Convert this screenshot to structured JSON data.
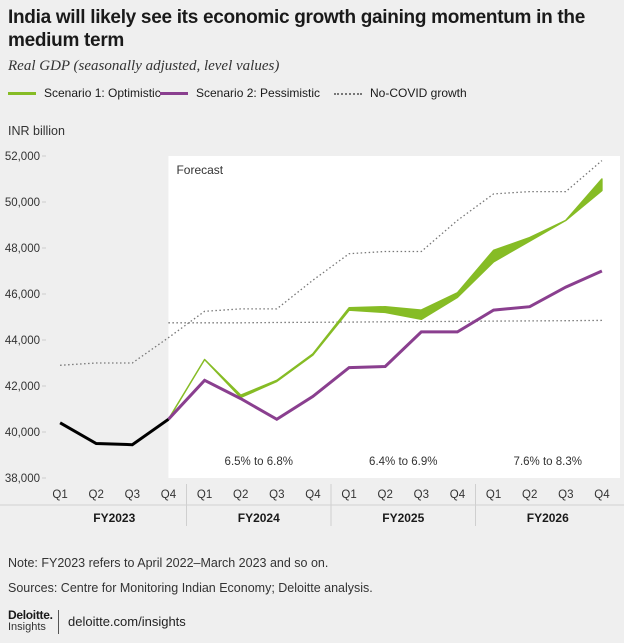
{
  "title": "India will likely see its economic growth gaining momentum in the medium term",
  "subtitle": "Real GDP (seasonally adjusted, level values)",
  "legend": [
    {
      "label": "Scenario 1: Optimistic",
      "color": "#86bc25",
      "style": "solid"
    },
    {
      "label": "Scenario 2: Pessimistic",
      "color": "#8a3f8f",
      "style": "solid"
    },
    {
      "label": "No-COVID growth",
      "color": "#777777",
      "style": "dotted"
    }
  ],
  "y_axis_label": "INR billion",
  "forecast_label": "Forecast",
  "notes": {
    "note": "Note: FY2023 refers to April 2022–March 2023 and so on.",
    "sources": "Sources: Centre for Monitoring Indian Economy; Deloitte analysis."
  },
  "brand": {
    "name": "Deloitte.",
    "sub": "Insights",
    "url": "deloitte.com/insights"
  },
  "colors": {
    "optimistic": "#86bc25",
    "pessimistic": "#8a3f8f",
    "actual": "#000000",
    "nocovid": "#777777",
    "background": "#efefef",
    "forecast_panel": "#ffffff"
  },
  "chart_data": {
    "type": "line",
    "categories": [
      "Q1",
      "Q2",
      "Q3",
      "Q4",
      "Q1",
      "Q2",
      "Q3",
      "Q4",
      "Q1",
      "Q2",
      "Q3",
      "Q4",
      "Q1",
      "Q2",
      "Q3",
      "Q4"
    ],
    "fiscal_years": [
      "FY2023",
      "FY2024",
      "FY2025",
      "FY2026"
    ],
    "ylim": [
      38000,
      52000
    ],
    "yticks": [
      38000,
      40000,
      42000,
      44000,
      46000,
      48000,
      50000,
      52000
    ],
    "ytick_labels": [
      "38,000",
      "40,000",
      "42,000",
      "44,000",
      "46,000",
      "48,000",
      "50,000",
      "52,000"
    ],
    "forecast_start_index": 3,
    "series": [
      {
        "key": "actual",
        "values": [
          40400,
          39500,
          39450,
          40550,
          null,
          null,
          null,
          null,
          null,
          null,
          null,
          null,
          null,
          null,
          null,
          null
        ]
      },
      {
        "name": "No-COVID growth",
        "key": "nocovid",
        "values": [
          42900,
          43000,
          43000,
          44100,
          45250,
          45350,
          45350,
          46600,
          47750,
          47850,
          47850,
          49200,
          50350,
          50450,
          50450,
          51800
        ]
      },
      {
        "key": "nocovid_flat",
        "values": [
          null,
          null,
          null,
          44750,
          44750,
          44750,
          44760,
          44770,
          44780,
          44790,
          44800,
          44810,
          44820,
          44830,
          44840,
          44850
        ]
      },
      {
        "name": "Scenario 1: Optimistic",
        "key": "optimistic",
        "low": [
          null,
          null,
          null,
          40550,
          43150,
          41500,
          42200,
          43350,
          45300,
          45200,
          44900,
          45850,
          47400,
          48300,
          49200,
          50500
        ],
        "high": [
          null,
          null,
          null,
          40550,
          43150,
          41600,
          42250,
          43400,
          45400,
          45450,
          45300,
          46050,
          47900,
          48450,
          49200,
          51000
        ]
      },
      {
        "name": "Scenario 2: Pessimistic",
        "key": "pessimistic",
        "values": [
          null,
          null,
          null,
          40550,
          42250,
          41450,
          40550,
          41550,
          42800,
          42850,
          44350,
          44350,
          45300,
          45450,
          46300,
          47000
        ]
      }
    ],
    "annotations": [
      {
        "text": "6.5% to 6.8%",
        "fy": "FY2024"
      },
      {
        "text": "6.4% to 6.9%",
        "fy": "FY2025"
      },
      {
        "text": "7.6% to 8.3%",
        "fy": "FY2026"
      }
    ]
  }
}
